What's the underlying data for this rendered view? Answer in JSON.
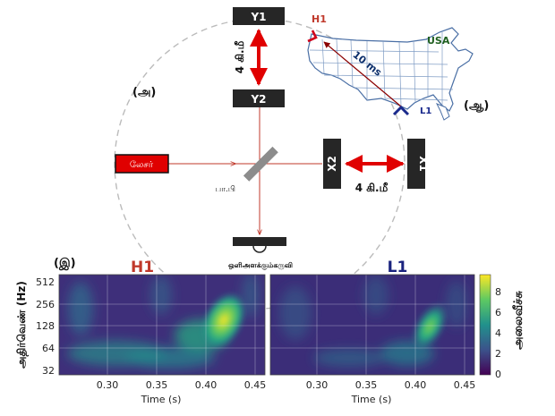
{
  "interferometer": {
    "panel_label": "(அ)",
    "y1": "Y1",
    "y2": "Y2",
    "x1": "X1",
    "x2": "X2",
    "arm_y_length": "4 கி.மீ",
    "arm_x_length": "4 கி.மீ",
    "laser": "லேசர்",
    "beam_splitter": "பா.பி",
    "detector": "ஒளிஅளக்கும்கருவி",
    "beam_color": "#c0392b",
    "laser_color": "#e00000",
    "arrow_color": "#e00000"
  },
  "map": {
    "panel_label": "(ஆ)",
    "country": "USA",
    "site_h1": "H1",
    "site_l1": "L1",
    "travel_time": "10 ms",
    "h1_color": "#d0021b",
    "l1_color": "#1a2a8c"
  },
  "spectrogram": {
    "panel_label": "(இ)",
    "ylabel": "அதிர்வெண் (Hz)",
    "xlabel": "Time (s)",
    "colorbar_label": "அலைவீச்சு",
    "yticks": [
      "512",
      "256",
      "128",
      "64",
      "32"
    ],
    "xticks": [
      "0.30",
      "0.35",
      "0.40",
      "0.45"
    ],
    "colorbar_ticks": [
      "8",
      "6",
      "4",
      "2",
      "0"
    ],
    "panels": [
      {
        "title": "H1",
        "title_color": "#c0392b"
      },
      {
        "title": "L1",
        "title_color": "#1a237e"
      }
    ]
  }
}
